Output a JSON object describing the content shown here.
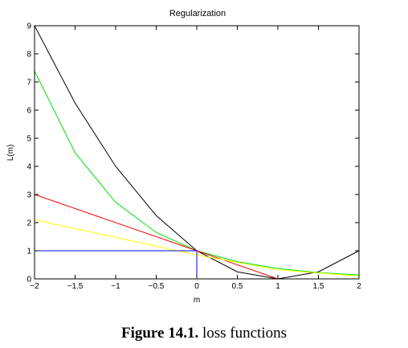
{
  "chart_data": {
    "type": "line",
    "title": "Regularization",
    "xlabel": "m",
    "ylabel": "L(m)",
    "xlim": [
      -2,
      2
    ],
    "ylim": [
      0,
      9
    ],
    "xticks": [
      -2,
      -1.5,
      -1,
      -0.5,
      0,
      0.5,
      1,
      1.5,
      2
    ],
    "xtick_labels": [
      "−2",
      "−1.5",
      "−1",
      "−0.5",
      "0",
      "0.5",
      "1",
      "1.5",
      "2"
    ],
    "yticks": [
      0,
      1,
      2,
      3,
      4,
      5,
      6,
      7,
      8,
      9
    ],
    "ytick_labels": [
      "0",
      "1",
      "2",
      "3",
      "4",
      "5",
      "6",
      "7",
      "8",
      "9"
    ],
    "grid": false,
    "series": [
      {
        "color": "#000000",
        "x": [
          -2,
          -1.5,
          -1,
          -0.5,
          0,
          0.5,
          1,
          1.5,
          2
        ],
        "y": [
          9,
          6.25,
          4,
          2.25,
          1,
          0.25,
          0,
          0.25,
          1
        ]
      },
      {
        "color": "#00e000",
        "x": [
          -2,
          -1.5,
          -1,
          -0.5,
          0,
          0.5,
          1,
          1.5,
          2
        ],
        "y": [
          7.39,
          4.48,
          2.72,
          1.65,
          1,
          0.61,
          0.37,
          0.22,
          0.14
        ]
      },
      {
        "color": "#ff0000",
        "x": [
          -2,
          1,
          2
        ],
        "y": [
          3,
          0,
          0
        ]
      },
      {
        "color": "#ffff00",
        "x": [
          -2,
          0,
          1,
          2
        ],
        "y": [
          2.1,
          0.85,
          0.32,
          0.1
        ]
      },
      {
        "color": "#0000ff",
        "x": [
          -2,
          0,
          0,
          2
        ],
        "y": [
          1,
          1,
          0,
          0
        ]
      }
    ]
  },
  "caption": {
    "figure_number": "Figure 14.1.",
    "text": " loss functions"
  }
}
